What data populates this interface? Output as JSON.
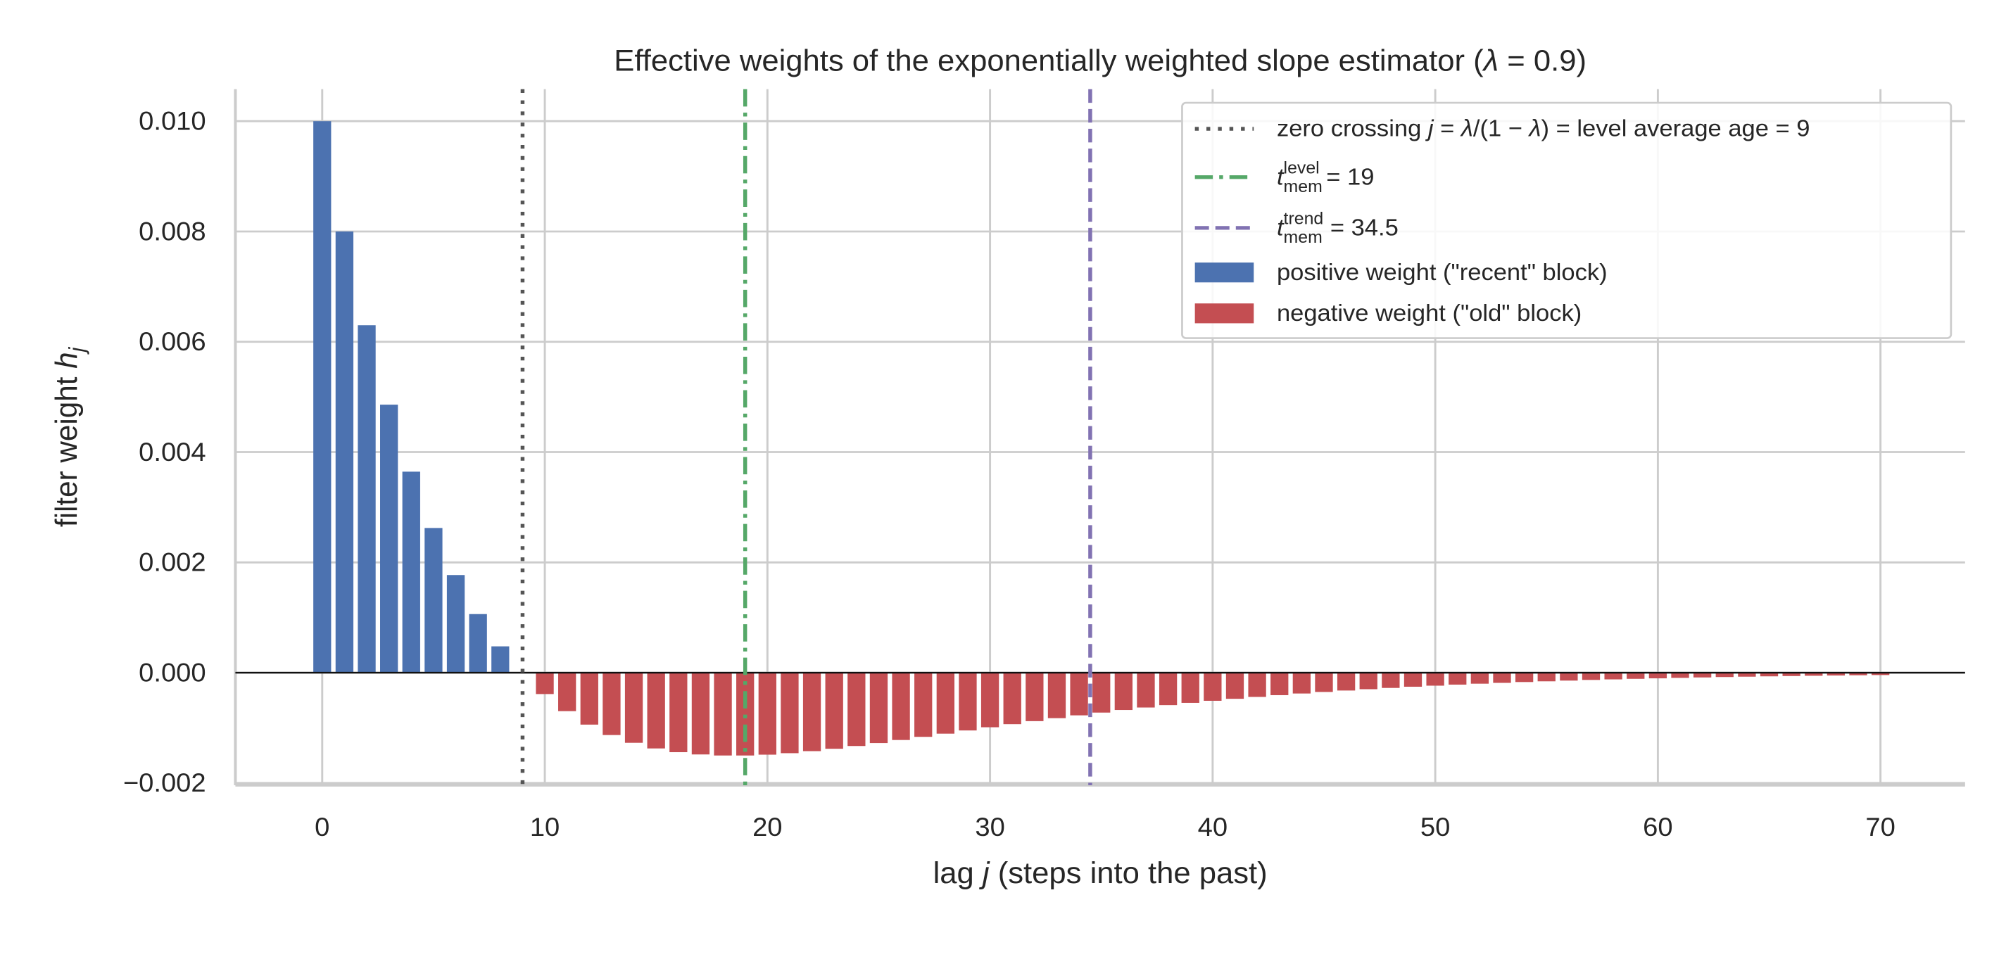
{
  "chart_data": {
    "type": "bar",
    "title": [
      {
        "text": "Effective weights of the exponentially weighted slope estimator  ("
      },
      {
        "text": "λ",
        "italic": true
      },
      {
        "text": " = 0.9)"
      }
    ],
    "xlabel": [
      {
        "text": "lag  "
      },
      {
        "text": "j",
        "italic": true
      },
      {
        "text": "  (steps into the past)"
      }
    ],
    "ylabel": [
      {
        "text": "filter weight  "
      },
      {
        "text": "h",
        "italic": true
      },
      {
        "text": "j",
        "italic": true,
        "sub": true
      }
    ],
    "xlim": [
      -3.9,
      73.8
    ],
    "xticks": [
      0,
      10,
      20,
      30,
      40,
      50,
      60,
      70
    ],
    "ylim": [
      -0.00204,
      0.01058
    ],
    "yticks": [
      {
        "value": -0.002,
        "label": "−0.002"
      },
      {
        "value": 0,
        "label": "0.000"
      },
      {
        "value": 0.002,
        "label": "0.002"
      },
      {
        "value": 0.004,
        "label": "0.004"
      },
      {
        "value": 0.006,
        "label": "0.006"
      },
      {
        "value": 0.008,
        "label": "0.008"
      },
      {
        "value": 0.01,
        "label": "0.010"
      }
    ],
    "grid": true,
    "hline": 0,
    "legend": "upper right",
    "bar_width": 0.8,
    "reference_lines": [
      {
        "x": 9,
        "color": "#555555",
        "linestyle": "dotted",
        "label": [
          {
            "text": "zero crossing "
          },
          {
            "text": "j",
            "italic": true
          },
          {
            "text": " = "
          },
          {
            "text": "λ",
            "italic": true
          },
          {
            "text": "/(1 − "
          },
          {
            "text": "λ",
            "italic": true
          },
          {
            "text": ") = level average age = 9"
          }
        ]
      },
      {
        "x": 19,
        "color": "#55a868",
        "linestyle": "dashdot",
        "label": [
          {
            "text": "t",
            "italic": true
          },
          {
            "text": "mem",
            "sub": true
          },
          {
            "text": "level",
            "sup": true,
            "stack": true
          },
          {
            "text": " = 19"
          }
        ]
      },
      {
        "x": 34.5,
        "color": "#8172b2",
        "linestyle": "dashed",
        "label": [
          {
            "text": "t",
            "italic": true
          },
          {
            "text": "mem",
            "sub": true
          },
          {
            "text": "trend",
            "sup": true,
            "stack": true
          },
          {
            "text": " = 34.5"
          }
        ]
      }
    ],
    "series": [
      {
        "name": "positive weight (\"recent\" block)",
        "color": "#4c72b0",
        "x": [
          0,
          1,
          2,
          3,
          4,
          5,
          6,
          7,
          8
        ],
        "values": [
          0.01,
          0.008,
          0.0063,
          0.00486,
          0.003645,
          0.002624,
          0.001771,
          0.001063,
          0.000478
        ]
      },
      {
        "name": "negative weight (\"old\" block)",
        "color": "#c44e52",
        "x": [
          10,
          11,
          12,
          13,
          14,
          15,
          16,
          17,
          18,
          19,
          20,
          21,
          22,
          23,
          24,
          25,
          26,
          27,
          28,
          29,
          30,
          31,
          32,
          33,
          34,
          35,
          36,
          37,
          38,
          39,
          40,
          41,
          42,
          43,
          44,
          45,
          46,
          47,
          48,
          49,
          50,
          51,
          52,
          53,
          54,
          55,
          56,
          57,
          58,
          59,
          60,
          61,
          62,
          63,
          64,
          65,
          66,
          67,
          68,
          69,
          70
        ],
        "values": [
          -0.000387,
          -0.000697,
          -0.000941,
          -0.00113,
          -0.001271,
          -0.001373,
          -0.001441,
          -0.001482,
          -0.001501,
          -0.001501,
          -0.001486,
          -0.001459,
          -0.001422,
          -0.001379,
          -0.001329,
          -0.001276,
          -0.00122,
          -0.001163,
          -0.001105,
          -0.001047,
          -0.000989,
          -0.000933,
          -0.000878,
          -0.000824,
          -0.000773,
          -0.000723,
          -0.000676,
          -0.000631,
          -0.000588,
          -0.000547,
          -0.000509,
          -0.000473,
          -0.000439,
          -0.000407,
          -0.000377,
          -0.000349,
          -0.000323,
          -0.000299,
          -0.000276,
          -0.000254,
          -0.000235,
          -0.000216,
          -0.000199,
          -0.000184,
          -0.000169,
          -0.000156,
          -0.000143,
          -0.000131,
          -0.000121,
          -0.000111,
          -0.000102,
          -9.34e-05,
          -8.57e-05,
          -7.86e-05,
          -7.21e-05,
          -6.6e-05,
          -6.05e-05,
          -5.54e-05,
          -5.07e-05,
          -4.64e-05,
          -4.25e-05
        ]
      }
    ]
  }
}
